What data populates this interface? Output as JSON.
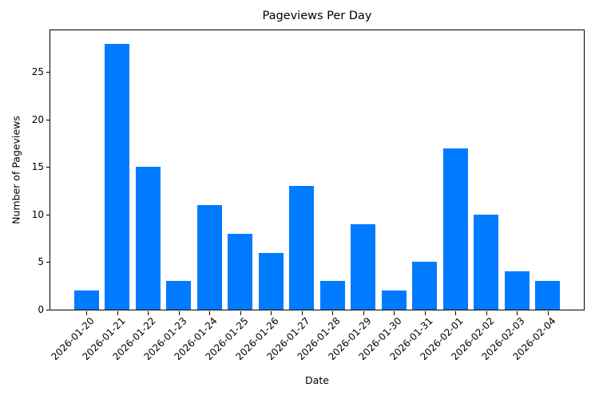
{
  "chart_data": {
    "type": "bar",
    "title": "Pageviews Per Day",
    "xlabel": "Date",
    "ylabel": "Number of Pageviews",
    "categories": [
      "2026-01-20",
      "2026-01-21",
      "2026-01-22",
      "2026-01-23",
      "2026-01-24",
      "2026-01-25",
      "2026-01-26",
      "2026-01-27",
      "2026-01-28",
      "2026-01-29",
      "2026-01-30",
      "2026-01-31",
      "2026-02-01",
      "2026-02-02",
      "2026-02-03",
      "2026-02-04"
    ],
    "values": [
      2,
      28,
      15,
      3,
      11,
      8,
      6,
      13,
      3,
      9,
      2,
      5,
      17,
      10,
      4,
      3
    ],
    "ylim": [
      0,
      29.4
    ],
    "yticks": [
      0,
      5,
      10,
      15,
      20,
      25
    ],
    "grid": false,
    "legend": null,
    "bar_color": "#007bff"
  }
}
